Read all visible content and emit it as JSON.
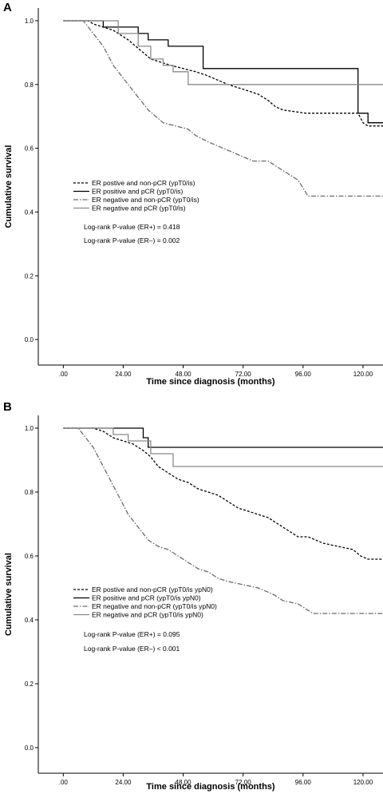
{
  "chart_data": [
    {
      "panel": "A",
      "type": "line",
      "step": true,
      "xlabel": "Time since diagnosis (months)",
      "ylabel": "Cumulative survival",
      "xlim": [
        -10,
        128
      ],
      "ylim": [
        -0.08,
        1.04
      ],
      "x_ticks": [
        0,
        24,
        48,
        72,
        96,
        120
      ],
      "x_tick_labels": [
        ".00",
        "24.00",
        "48.00",
        "72.00",
        "96.00",
        "120.00"
      ],
      "y_ticks": [
        0,
        0.2,
        0.4,
        0.6,
        0.8,
        1.0
      ],
      "y_tick_labels": [
        "0.0",
        "0.2",
        "0.4",
        "0.6",
        "0.8",
        "1.0"
      ],
      "grid": false,
      "legend_placement": "center-left",
      "series": [
        {
          "name": "ER postive and non-pCR (ypT0/is)",
          "color": "#000000",
          "dash": "3,2",
          "points": [
            [
              0,
              1.0
            ],
            [
              10,
              1.0
            ],
            [
              12,
              0.99
            ],
            [
              16,
              0.98
            ],
            [
              20,
              0.97
            ],
            [
              22,
              0.96
            ],
            [
              26,
              0.94
            ],
            [
              29,
              0.92
            ],
            [
              32,
              0.9
            ],
            [
              35,
              0.88
            ],
            [
              39,
              0.87
            ],
            [
              43,
              0.86
            ],
            [
              48,
              0.85
            ],
            [
              53,
              0.84
            ],
            [
              57,
              0.83
            ],
            [
              60,
              0.82
            ],
            [
              63,
              0.81
            ],
            [
              66,
              0.8
            ],
            [
              70,
              0.79
            ],
            [
              74,
              0.78
            ],
            [
              78,
              0.77
            ],
            [
              82,
              0.75
            ],
            [
              85,
              0.73
            ],
            [
              88,
              0.72
            ],
            [
              97,
              0.71
            ],
            [
              118,
              0.71
            ],
            [
              120,
              0.68
            ],
            [
              122,
              0.67
            ],
            [
              128,
              0.67
            ]
          ]
        },
        {
          "name": "ER positive and pCR (ypT0/is)",
          "color": "#000000",
          "dash": "",
          "points": [
            [
              0,
              1.0
            ],
            [
              16,
              1.0
            ],
            [
              16,
              0.98
            ],
            [
              30,
              0.98
            ],
            [
              30,
              0.96
            ],
            [
              34,
              0.96
            ],
            [
              34,
              0.94
            ],
            [
              42,
              0.94
            ],
            [
              42,
              0.92
            ],
            [
              56,
              0.92
            ],
            [
              56,
              0.85
            ],
            [
              118,
              0.85
            ],
            [
              118,
              0.71
            ],
            [
              122,
              0.71
            ],
            [
              122,
              0.68
            ],
            [
              128,
              0.68
            ]
          ]
        },
        {
          "name": "ER negative and non-pCR (ypT0/is)",
          "color": "#6a6a6a",
          "dash": "6,2,1.5,2",
          "points": [
            [
              0,
              1.0
            ],
            [
              8,
              1.0
            ],
            [
              10,
              0.98
            ],
            [
              12,
              0.96
            ],
            [
              14,
              0.94
            ],
            [
              16,
              0.92
            ],
            [
              18,
              0.89
            ],
            [
              20,
              0.86
            ],
            [
              22,
              0.84
            ],
            [
              24,
              0.82
            ],
            [
              26,
              0.8
            ],
            [
              28,
              0.78
            ],
            [
              30,
              0.76
            ],
            [
              32,
              0.74
            ],
            [
              34,
              0.72
            ],
            [
              37,
              0.7
            ],
            [
              40,
              0.68
            ],
            [
              45,
              0.67
            ],
            [
              50,
              0.66
            ],
            [
              53,
              0.64
            ],
            [
              58,
              0.62
            ],
            [
              64,
              0.6
            ],
            [
              70,
              0.58
            ],
            [
              76,
              0.56
            ],
            [
              82,
              0.56
            ],
            [
              86,
              0.54
            ],
            [
              90,
              0.52
            ],
            [
              94,
              0.5
            ],
            [
              98,
              0.45
            ],
            [
              128,
              0.45
            ]
          ]
        },
        {
          "name": "ER negative and pCR (ypT0/is)",
          "color": "#8a8a8a",
          "dash": "",
          "points": [
            [
              0,
              1.0
            ],
            [
              22,
              1.0
            ],
            [
              22,
              0.96
            ],
            [
              30,
              0.96
            ],
            [
              30,
              0.92
            ],
            [
              35,
              0.92
            ],
            [
              35,
              0.88
            ],
            [
              40,
              0.88
            ],
            [
              40,
              0.86
            ],
            [
              44,
              0.86
            ],
            [
              44,
              0.84
            ],
            [
              50,
              0.84
            ],
            [
              50,
              0.8
            ],
            [
              128,
              0.8
            ]
          ]
        }
      ],
      "annotations": [
        "Log-rank P-value (ER+) = 0.418",
        "Log-rank P-value (ER–) = 0.002"
      ]
    },
    {
      "panel": "B",
      "type": "line",
      "step": true,
      "xlabel": "Time since diagnosis (months)",
      "ylabel": "Cumulative survival",
      "xlim": [
        -10,
        128
      ],
      "ylim": [
        -0.08,
        1.04
      ],
      "x_ticks": [
        0,
        24,
        48,
        72,
        96,
        120
      ],
      "x_tick_labels": [
        ".00",
        "24.00",
        "48.00",
        "72.00",
        "96.00",
        "120.00"
      ],
      "y_ticks": [
        0,
        0.2,
        0.4,
        0.6,
        0.8,
        1.0
      ],
      "y_tick_labels": [
        "0.0",
        "0.2",
        "0.4",
        "0.6",
        "0.8",
        "1.0"
      ],
      "grid": false,
      "legend_placement": "bottom-left",
      "series": [
        {
          "name": "ER postive and non-pCR (ypT0/is ypN0)",
          "color": "#000000",
          "dash": "3,2",
          "points": [
            [
              0,
              1.0
            ],
            [
              12,
              1.0
            ],
            [
              16,
              0.99
            ],
            [
              20,
              0.97
            ],
            [
              24,
              0.96
            ],
            [
              28,
              0.95
            ],
            [
              32,
              0.93
            ],
            [
              35,
              0.91
            ],
            [
              38,
              0.88
            ],
            [
              42,
              0.86
            ],
            [
              46,
              0.84
            ],
            [
              50,
              0.83
            ],
            [
              54,
              0.81
            ],
            [
              58,
              0.8
            ],
            [
              62,
              0.79
            ],
            [
              66,
              0.77
            ],
            [
              70,
              0.75
            ],
            [
              74,
              0.74
            ],
            [
              78,
              0.73
            ],
            [
              82,
              0.72
            ],
            [
              86,
              0.7
            ],
            [
              90,
              0.68
            ],
            [
              94,
              0.66
            ],
            [
              98,
              0.66
            ],
            [
              104,
              0.64
            ],
            [
              110,
              0.63
            ],
            [
              116,
              0.62
            ],
            [
              119,
              0.6
            ],
            [
              122,
              0.59
            ],
            [
              128,
              0.59
            ]
          ]
        },
        {
          "name": "ER positive and pCR (ypT0/is ypN0)",
          "color": "#000000",
          "dash": "",
          "points": [
            [
              0,
              1.0
            ],
            [
              32,
              1.0
            ],
            [
              32,
              0.97
            ],
            [
              34,
              0.97
            ],
            [
              34,
              0.94
            ],
            [
              128,
              0.94
            ]
          ]
        },
        {
          "name": "ER negative and non-pCR (ypT0/is ypN0)",
          "color": "#6a6a6a",
          "dash": "6,2,1.5,2",
          "points": [
            [
              0,
              1.0
            ],
            [
              6,
              1.0
            ],
            [
              8,
              0.98
            ],
            [
              10,
              0.96
            ],
            [
              12,
              0.94
            ],
            [
              14,
              0.91
            ],
            [
              16,
              0.88
            ],
            [
              18,
              0.85
            ],
            [
              20,
              0.82
            ],
            [
              22,
              0.79
            ],
            [
              24,
              0.76
            ],
            [
              26,
              0.73
            ],
            [
              28,
              0.71
            ],
            [
              30,
              0.69
            ],
            [
              32,
              0.67
            ],
            [
              34,
              0.65
            ],
            [
              38,
              0.63
            ],
            [
              42,
              0.62
            ],
            [
              46,
              0.6
            ],
            [
              50,
              0.58
            ],
            [
              54,
              0.56
            ],
            [
              58,
              0.55
            ],
            [
              62,
              0.53
            ],
            [
              66,
              0.52
            ],
            [
              72,
              0.51
            ],
            [
              78,
              0.5
            ],
            [
              84,
              0.48
            ],
            [
              88,
              0.46
            ],
            [
              94,
              0.45
            ],
            [
              100,
              0.42
            ],
            [
              128,
              0.42
            ]
          ]
        },
        {
          "name": "ER negative and pCR (ypT0/is ypN0)",
          "color": "#8a8a8a",
          "dash": "",
          "points": [
            [
              0,
              1.0
            ],
            [
              20,
              1.0
            ],
            [
              20,
              0.98
            ],
            [
              26,
              0.98
            ],
            [
              26,
              0.96
            ],
            [
              35,
              0.96
            ],
            [
              35,
              0.92
            ],
            [
              44,
              0.92
            ],
            [
              44,
              0.88
            ],
            [
              128,
              0.88
            ]
          ]
        }
      ],
      "annotations": [
        "Log-rank P-value (ER+) = 0.095",
        "Log-rank P-value (ER–) < 0.001"
      ]
    }
  ]
}
